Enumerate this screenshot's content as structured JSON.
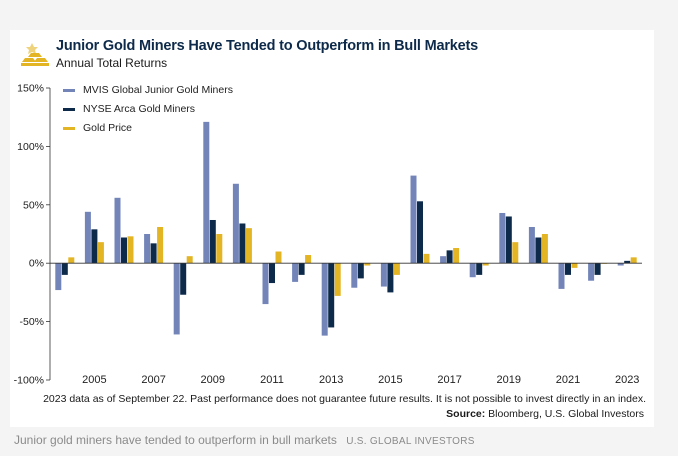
{
  "header": {
    "title": "Junior Gold Miners Have Tended to Outperform in Bull Markets",
    "subtitle": "Annual Total Returns"
  },
  "footer": {
    "note": "2023 data as of September 22. Past performance does not guarantee future results. It is not possible to invest directly in an index.",
    "source_label": "Source:",
    "source_text": "Bloomberg, U.S. Global Investors",
    "caption": "Junior gold miners have tended to outperform in bull markets",
    "credit": "U.S. GLOBAL INVESTORS"
  },
  "chart_data": {
    "type": "bar",
    "categories": [
      "2004",
      "2005",
      "2006",
      "2007",
      "2008",
      "2009",
      "2010",
      "2011",
      "2012",
      "2013",
      "2014",
      "2015",
      "2016",
      "2017",
      "2018",
      "2019",
      "2020",
      "2021",
      "2022",
      "2023"
    ],
    "x_tick_labels": [
      "2005",
      "2007",
      "2009",
      "2011",
      "2013",
      "2015",
      "2017",
      "2019",
      "2021",
      "2023"
    ],
    "ylim": [
      -100,
      150
    ],
    "y_ticks": [
      150,
      100,
      50,
      0,
      -50,
      -100
    ],
    "y_tick_labels": [
      "150%",
      "100%",
      "50%",
      "0%",
      "-50%",
      "-100%"
    ],
    "grid": false,
    "legend_position": "top-left",
    "series": [
      {
        "name": "MVIS Global Junior Gold Miners",
        "color": "#7384b8",
        "values": [
          -23,
          44,
          56,
          25,
          -61,
          121,
          68,
          -35,
          -16,
          -62,
          -21,
          -20,
          75,
          6,
          -12,
          43,
          31,
          -22,
          -15,
          -2
        ]
      },
      {
        "name": "NYSE Arca Gold Miners",
        "color": "#0d2a4a",
        "values": [
          -10,
          29,
          22,
          17,
          -27,
          37,
          34,
          -17,
          -10,
          -55,
          -13,
          -25,
          53,
          11,
          -10,
          40,
          22,
          -10,
          -10,
          2
        ]
      },
      {
        "name": "Gold Price",
        "color": "#e3b424",
        "values": [
          5,
          18,
          23,
          31,
          6,
          25,
          30,
          10,
          7,
          -28,
          -2,
          -10,
          8,
          13,
          -2,
          18,
          25,
          -4,
          0,
          5
        ]
      }
    ]
  }
}
